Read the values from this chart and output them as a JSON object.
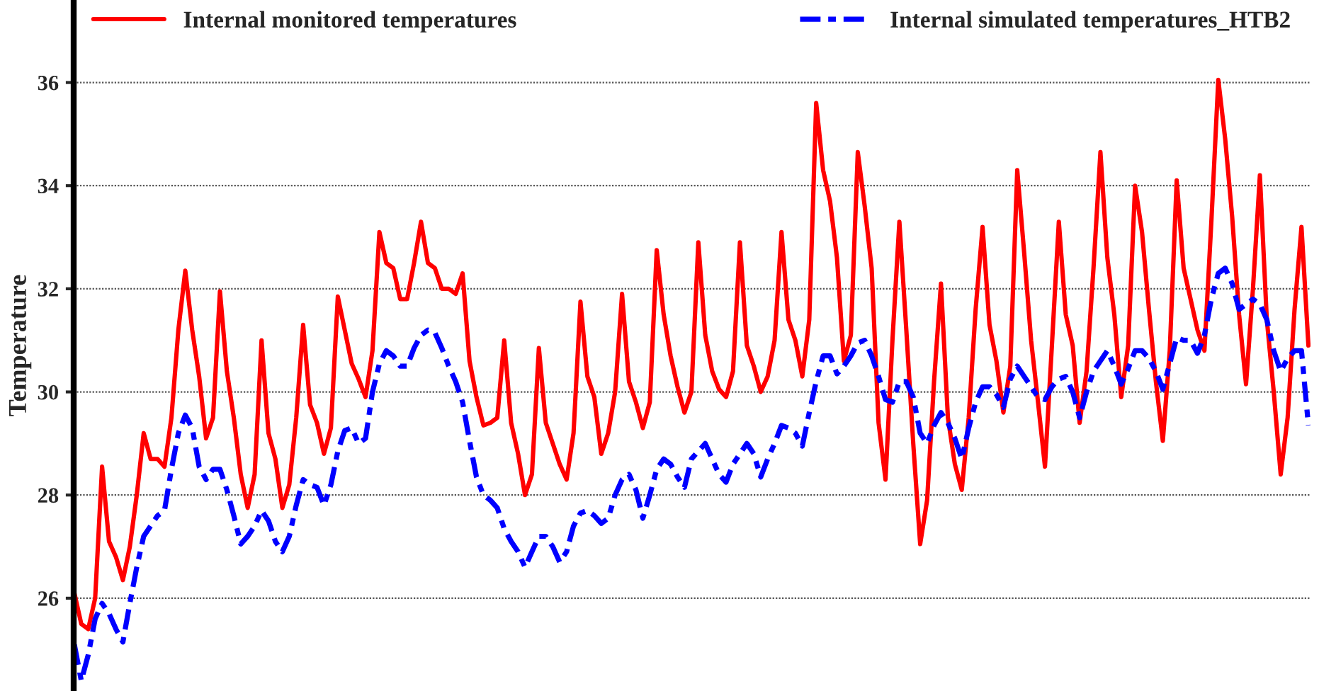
{
  "chart_data": {
    "type": "line",
    "ylabel": "Temperature",
    "categories": [
      null,
      null,
      null,
      null,
      null,
      null,
      null,
      null,
      null,
      null,
      null,
      null,
      null,
      null,
      null,
      null,
      null,
      null,
      null,
      null,
      null,
      null,
      null,
      null,
      null,
      null,
      null,
      null,
      null,
      null,
      null,
      null,
      null,
      null,
      null,
      null,
      null,
      null,
      null,
      null,
      null,
      null,
      null,
      null,
      null,
      null,
      null,
      null,
      null,
      null,
      null,
      null,
      null,
      null,
      null,
      null,
      null,
      null,
      null,
      null,
      null,
      null,
      null,
      null,
      null,
      null,
      null,
      null,
      null,
      null,
      null,
      null,
      null,
      null,
      null,
      null,
      null,
      null,
      null,
      null,
      null,
      null,
      null,
      null,
      null,
      null,
      null,
      null,
      null,
      null,
      null,
      null,
      null,
      null,
      null,
      null,
      null,
      null,
      null,
      null,
      null,
      null,
      null,
      null,
      null,
      null,
      null,
      null,
      null,
      null,
      null,
      null,
      null,
      null,
      null,
      null,
      null,
      null,
      null,
      null,
      null,
      null,
      null,
      null,
      null,
      null,
      null,
      null,
      null,
      null,
      null,
      null,
      null,
      null,
      null,
      null,
      null,
      null,
      null,
      null,
      null,
      null,
      null,
      null,
      null,
      null,
      null,
      null,
      null,
      null,
      null,
      null,
      null,
      null,
      null,
      null,
      null,
      null,
      null,
      null,
      null,
      null,
      null,
      null,
      null,
      null,
      null,
      null,
      null,
      null,
      null,
      null,
      null,
      null,
      null,
      null,
      null,
      null,
      null
    ],
    "series": [
      {
        "name": "Internal monitored temperatures",
        "color": "#ff0000",
        "line_style": "solid",
        "values": [
          26.1,
          25.5,
          25.4,
          26.0,
          28.55,
          27.1,
          26.8,
          26.35,
          27.0,
          28.0,
          29.2,
          28.7,
          28.7,
          28.55,
          29.5,
          31.2,
          32.35,
          31.2,
          30.3,
          29.1,
          29.5,
          31.95,
          30.4,
          29.5,
          28.4,
          27.75,
          28.4,
          31.0,
          29.2,
          28.7,
          27.75,
          28.2,
          29.5,
          31.3,
          29.75,
          29.4,
          28.8,
          29.3,
          31.85,
          31.2,
          30.55,
          30.25,
          29.9,
          30.8,
          33.1,
          32.5,
          32.4,
          31.8,
          31.8,
          32.5,
          33.3,
          32.5,
          32.4,
          32.0,
          32.0,
          31.9,
          32.3,
          30.6,
          29.9,
          29.35,
          29.4,
          29.5,
          31.0,
          29.4,
          28.8,
          28.0,
          28.4,
          30.85,
          29.4,
          29.0,
          28.6,
          28.3,
          29.2,
          31.75,
          30.3,
          29.9,
          28.8,
          29.2,
          30.0,
          31.9,
          30.2,
          29.8,
          29.3,
          29.8,
          32.75,
          31.5,
          30.7,
          30.1,
          29.6,
          30.0,
          32.9,
          31.1,
          30.4,
          30.05,
          29.9,
          30.4,
          32.9,
          30.9,
          30.5,
          30.0,
          30.3,
          31.0,
          33.1,
          31.4,
          31.0,
          30.3,
          31.4,
          35.6,
          34.3,
          33.7,
          32.6,
          30.6,
          31.1,
          34.65,
          33.6,
          32.4,
          29.4,
          28.3,
          31.0,
          33.3,
          31.2,
          29.0,
          27.05,
          27.9,
          30.2,
          32.1,
          29.5,
          28.6,
          28.1,
          29.5,
          31.6,
          33.2,
          31.3,
          30.6,
          29.6,
          30.5,
          34.3,
          32.7,
          31.0,
          29.8,
          28.55,
          30.9,
          33.3,
          31.5,
          30.9,
          29.4,
          30.4,
          32.4,
          34.65,
          32.6,
          31.5,
          29.9,
          30.9,
          34.0,
          33.1,
          31.6,
          30.2,
          29.05,
          30.8,
          34.1,
          32.4,
          31.8,
          31.2,
          30.8,
          33.3,
          36.05,
          34.9,
          33.4,
          31.5,
          30.15,
          32.0,
          34.2,
          31.4,
          30.0,
          28.4,
          29.5,
          31.6,
          33.2,
          30.9
        ]
      },
      {
        "name": "Internal simulated temperatures_HTB2",
        "color": "#0000ff",
        "line_style": "dashed",
        "values": [
          25.1,
          24.4,
          24.9,
          25.6,
          25.9,
          25.7,
          25.4,
          25.15,
          25.9,
          26.6,
          27.2,
          27.4,
          27.6,
          27.7,
          28.5,
          29.2,
          29.55,
          29.3,
          28.55,
          28.3,
          28.5,
          28.5,
          28.1,
          27.6,
          27.05,
          27.2,
          27.4,
          27.7,
          27.5,
          27.1,
          26.9,
          27.2,
          27.8,
          28.3,
          28.2,
          28.15,
          27.8,
          28.2,
          28.85,
          29.25,
          29.3,
          29.0,
          29.1,
          30.0,
          30.55,
          30.8,
          30.7,
          30.5,
          30.5,
          30.85,
          31.1,
          31.2,
          31.15,
          30.85,
          30.5,
          30.2,
          29.8,
          29.05,
          28.35,
          28.0,
          27.9,
          27.75,
          27.35,
          27.1,
          26.9,
          26.6,
          26.9,
          27.2,
          27.2,
          27.0,
          26.7,
          26.9,
          27.4,
          27.65,
          27.7,
          27.6,
          27.45,
          27.55,
          28.0,
          28.3,
          28.4,
          28.1,
          27.55,
          28.0,
          28.5,
          28.7,
          28.6,
          28.35,
          28.15,
          28.7,
          28.85,
          29.0,
          28.7,
          28.4,
          28.25,
          28.6,
          28.8,
          29.0,
          28.8,
          28.35,
          28.7,
          29.0,
          29.35,
          29.3,
          29.2,
          28.95,
          29.6,
          30.2,
          30.7,
          30.7,
          30.35,
          30.5,
          30.7,
          30.95,
          31.0,
          30.7,
          30.3,
          29.85,
          29.8,
          30.2,
          30.2,
          29.9,
          29.2,
          29.0,
          29.35,
          29.6,
          29.4,
          29.1,
          28.7,
          29.3,
          29.8,
          30.1,
          30.1,
          29.95,
          29.7,
          30.25,
          30.5,
          30.3,
          30.1,
          29.9,
          29.85,
          30.1,
          30.25,
          30.3,
          30.0,
          29.5,
          30.0,
          30.4,
          30.6,
          30.8,
          30.5,
          30.15,
          30.45,
          30.8,
          30.8,
          30.65,
          30.4,
          30.05,
          30.55,
          31.05,
          31.0,
          31.0,
          30.75,
          31.1,
          31.8,
          32.3,
          32.4,
          32.1,
          31.6,
          31.7,
          31.8,
          31.7,
          31.4,
          30.8,
          30.4,
          30.65,
          30.8,
          30.8,
          29.35
        ]
      }
    ],
    "ylim": [
      24.2,
      37.6
    ],
    "yticks": [
      26,
      28,
      30,
      32,
      34,
      36
    ],
    "grid": "y",
    "legend": "top",
    "tick_labels": "y"
  }
}
